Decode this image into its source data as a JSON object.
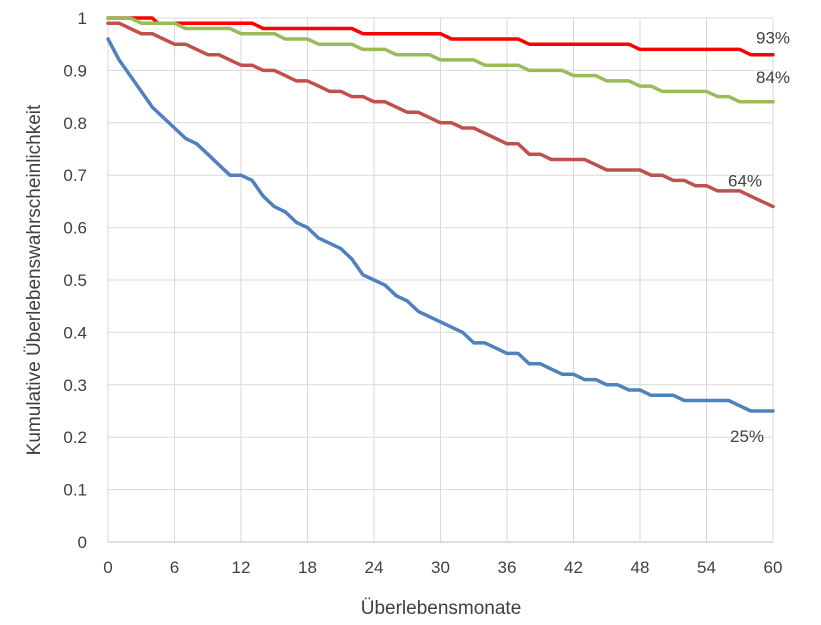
{
  "chart_data": {
    "type": "line",
    "title": "",
    "xlabel": "Überlebensmonate",
    "ylabel": "Kumulative Überlebenswahrscheinlichkeit",
    "xlim": [
      0,
      60
    ],
    "ylim": [
      0,
      1
    ],
    "grid": true,
    "x_ticks": [
      "0",
      "6",
      "12",
      "18",
      "24",
      "30",
      "36",
      "42",
      "48",
      "54",
      "60"
    ],
    "y_ticks": [
      "0",
      "0.1",
      "0.2",
      "0.3",
      "0.4",
      "0.5",
      "0.6",
      "0.7",
      "0.8",
      "0.9",
      "1"
    ],
    "series": [
      {
        "color": "#ff0000",
        "end_label": "93%",
        "points": [
          [
            0,
            1.0
          ],
          [
            4,
            1.0
          ],
          [
            4.5,
            0.99
          ],
          [
            13,
            0.99
          ],
          [
            14,
            0.98
          ],
          [
            22,
            0.98
          ],
          [
            23,
            0.97
          ],
          [
            30,
            0.97
          ],
          [
            31,
            0.96
          ],
          [
            37,
            0.96
          ],
          [
            38,
            0.95
          ],
          [
            47,
            0.95
          ],
          [
            48,
            0.94
          ],
          [
            57,
            0.94
          ],
          [
            58,
            0.93
          ],
          [
            60,
            0.93
          ]
        ]
      },
      {
        "color": "#9bbb59",
        "end_label": "84%",
        "points": [
          [
            0,
            1.0
          ],
          [
            2,
            1.0
          ],
          [
            3,
            0.99
          ],
          [
            6,
            0.99
          ],
          [
            7,
            0.98
          ],
          [
            11,
            0.98
          ],
          [
            12,
            0.97
          ],
          [
            15,
            0.97
          ],
          [
            16,
            0.96
          ],
          [
            18,
            0.96
          ],
          [
            19,
            0.95
          ],
          [
            22,
            0.95
          ],
          [
            23,
            0.94
          ],
          [
            25,
            0.94
          ],
          [
            26,
            0.93
          ],
          [
            29,
            0.93
          ],
          [
            30,
            0.92
          ],
          [
            33,
            0.92
          ],
          [
            34,
            0.91
          ],
          [
            37,
            0.91
          ],
          [
            38,
            0.9
          ],
          [
            41,
            0.9
          ],
          [
            42,
            0.89
          ],
          [
            44,
            0.89
          ],
          [
            45,
            0.88
          ],
          [
            47,
            0.88
          ],
          [
            48,
            0.87
          ],
          [
            49,
            0.87
          ],
          [
            50,
            0.86
          ],
          [
            53,
            0.86
          ],
          [
            54,
            0.86
          ],
          [
            55,
            0.85
          ],
          [
            56,
            0.85
          ],
          [
            57,
            0.84
          ],
          [
            60,
            0.84
          ]
        ]
      },
      {
        "color": "#c0504d",
        "end_label": "64%",
        "points": [
          [
            0,
            0.99
          ],
          [
            1,
            0.99
          ],
          [
            2,
            0.98
          ],
          [
            3,
            0.97
          ],
          [
            4,
            0.97
          ],
          [
            5,
            0.96
          ],
          [
            6,
            0.95
          ],
          [
            7,
            0.95
          ],
          [
            8,
            0.94
          ],
          [
            9,
            0.93
          ],
          [
            10,
            0.93
          ],
          [
            11,
            0.92
          ],
          [
            12,
            0.91
          ],
          [
            13,
            0.91
          ],
          [
            14,
            0.9
          ],
          [
            15,
            0.9
          ],
          [
            16,
            0.89
          ],
          [
            17,
            0.88
          ],
          [
            18,
            0.88
          ],
          [
            19,
            0.87
          ],
          [
            20,
            0.86
          ],
          [
            21,
            0.86
          ],
          [
            22,
            0.85
          ],
          [
            23,
            0.85
          ],
          [
            24,
            0.84
          ],
          [
            25,
            0.84
          ],
          [
            26,
            0.83
          ],
          [
            27,
            0.82
          ],
          [
            28,
            0.82
          ],
          [
            29,
            0.81
          ],
          [
            30,
            0.8
          ],
          [
            31,
            0.8
          ],
          [
            32,
            0.79
          ],
          [
            33,
            0.79
          ],
          [
            34,
            0.78
          ],
          [
            35,
            0.77
          ],
          [
            36,
            0.76
          ],
          [
            37,
            0.76
          ],
          [
            38,
            0.74
          ],
          [
            39,
            0.74
          ],
          [
            40,
            0.73
          ],
          [
            41,
            0.73
          ],
          [
            42,
            0.73
          ],
          [
            43,
            0.73
          ],
          [
            44,
            0.72
          ],
          [
            45,
            0.71
          ],
          [
            46,
            0.71
          ],
          [
            47,
            0.71
          ],
          [
            48,
            0.71
          ],
          [
            49,
            0.7
          ],
          [
            50,
            0.7
          ],
          [
            51,
            0.69
          ],
          [
            52,
            0.69
          ],
          [
            53,
            0.68
          ],
          [
            54,
            0.68
          ],
          [
            55,
            0.67
          ],
          [
            56,
            0.67
          ],
          [
            57,
            0.67
          ],
          [
            58,
            0.66
          ],
          [
            59,
            0.65
          ],
          [
            60,
            0.64
          ]
        ]
      },
      {
        "color": "#4f81bd",
        "end_label": "25%",
        "points": [
          [
            0,
            0.96
          ],
          [
            1,
            0.92
          ],
          [
            2,
            0.89
          ],
          [
            3,
            0.86
          ],
          [
            4,
            0.83
          ],
          [
            5,
            0.81
          ],
          [
            6,
            0.79
          ],
          [
            7,
            0.77
          ],
          [
            8,
            0.76
          ],
          [
            9,
            0.74
          ],
          [
            10,
            0.72
          ],
          [
            11,
            0.7
          ],
          [
            12,
            0.7
          ],
          [
            13,
            0.69
          ],
          [
            14,
            0.66
          ],
          [
            15,
            0.64
          ],
          [
            16,
            0.63
          ],
          [
            17,
            0.61
          ],
          [
            18,
            0.6
          ],
          [
            19,
            0.58
          ],
          [
            20,
            0.57
          ],
          [
            21,
            0.56
          ],
          [
            22,
            0.54
          ],
          [
            23,
            0.51
          ],
          [
            24,
            0.5
          ],
          [
            25,
            0.49
          ],
          [
            26,
            0.47
          ],
          [
            27,
            0.46
          ],
          [
            28,
            0.44
          ],
          [
            29,
            0.43
          ],
          [
            30,
            0.42
          ],
          [
            31,
            0.41
          ],
          [
            32,
            0.4
          ],
          [
            33,
            0.38
          ],
          [
            34,
            0.38
          ],
          [
            35,
            0.37
          ],
          [
            36,
            0.36
          ],
          [
            37,
            0.36
          ],
          [
            38,
            0.34
          ],
          [
            39,
            0.34
          ],
          [
            40,
            0.33
          ],
          [
            41,
            0.32
          ],
          [
            42,
            0.32
          ],
          [
            43,
            0.31
          ],
          [
            44,
            0.31
          ],
          [
            45,
            0.3
          ],
          [
            46,
            0.3
          ],
          [
            47,
            0.29
          ],
          [
            48,
            0.29
          ],
          [
            49,
            0.28
          ],
          [
            50,
            0.28
          ],
          [
            51,
            0.28
          ],
          [
            52,
            0.27
          ],
          [
            53,
            0.27
          ],
          [
            54,
            0.27
          ],
          [
            55,
            0.27
          ],
          [
            56,
            0.27
          ],
          [
            57,
            0.26
          ],
          [
            58,
            0.25
          ],
          [
            59,
            0.25
          ],
          [
            60,
            0.25
          ]
        ]
      }
    ]
  }
}
